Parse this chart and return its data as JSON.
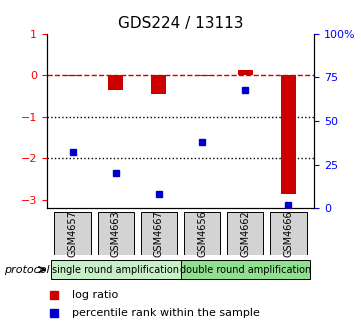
{
  "title": "GDS224 / 13113",
  "samples": [
    "GSM4657",
    "GSM4663",
    "GSM4667",
    "GSM4656",
    "GSM4662",
    "GSM4666"
  ],
  "log_ratio": [
    -0.02,
    -0.35,
    -0.45,
    -0.02,
    0.12,
    -2.85
  ],
  "percentile_rank": [
    32,
    20,
    8,
    38,
    68,
    2
  ],
  "ylim_left": [
    -3.2,
    1.0
  ],
  "ylim_right": [
    0,
    100
  ],
  "groups": [
    {
      "label": "single round amplification",
      "samples": [
        0,
        1,
        2
      ],
      "color": "#c8f0c8"
    },
    {
      "label": "double round amplification",
      "samples": [
        3,
        4,
        5
      ],
      "color": "#90e090"
    }
  ],
  "bar_color": "#cc0000",
  "dot_color": "#0000cc",
  "dashed_line_color": "#cc0000",
  "hline_color": "#000000",
  "bg_color": "#ffffff",
  "title_fontsize": 11,
  "tick_fontsize": 8,
  "label_fontsize": 8,
  "group_label_fontsize": 7,
  "sample_label_fontsize": 7
}
